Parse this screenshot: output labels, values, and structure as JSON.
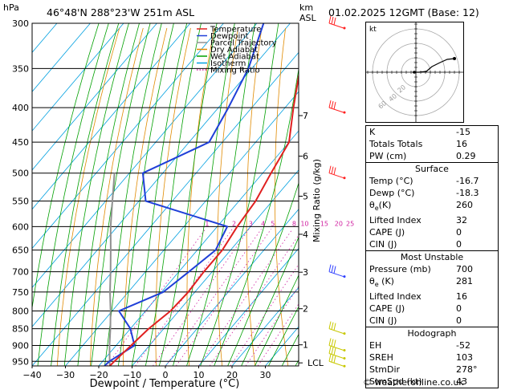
{
  "header": {
    "location": "46°48'N  288°23'W  251m  ASL",
    "datetime": "01.02.2025  12GMT  (Base: 12)",
    "left_unit": "hPa",
    "right_unit_top": "km",
    "right_unit_bottom": "ASL"
  },
  "chart_data": {
    "type": "skew-t",
    "xlabel": "Dewpoint / Temperature (°C)",
    "ylabel_right": "Mixing Ratio (g/kg)",
    "xlim": [
      -40,
      40
    ],
    "x_ticks": [
      -40,
      -30,
      -20,
      -10,
      0,
      10,
      20,
      30
    ],
    "x_tick_labels": [
      "−40",
      "−30",
      "−20",
      "−10",
      "0",
      "10",
      "20",
      "30"
    ],
    "pressure_levels": [
      300,
      350,
      400,
      450,
      500,
      550,
      600,
      650,
      700,
      750,
      800,
      850,
      900,
      950
    ],
    "km_ticks": [
      {
        "label": "1",
        "pressure": 898
      },
      {
        "label": "2",
        "pressure": 794
      },
      {
        "label": "3",
        "pressure": 701
      },
      {
        "label": "4",
        "pressure": 616
      },
      {
        "label": "5",
        "pressure": 541
      },
      {
        "label": "6",
        "pressure": 472
      },
      {
        "label": "7",
        "pressure": 411
      }
    ],
    "lcl": {
      "label": "LCL",
      "pressure": 955
    },
    "mixing_ratio_labels": [
      "1",
      "2",
      "3",
      "4",
      "5",
      "8",
      "10",
      "15",
      "20",
      "25"
    ],
    "mixing_ratio_values": [
      1,
      2,
      3,
      4,
      5,
      8,
      10,
      15,
      20,
      25
    ],
    "legend": [
      {
        "name": "Temperature",
        "color": "#e02020"
      },
      {
        "name": "Dewpoint",
        "color": "#1f3fd8"
      },
      {
        "name": "Parcel Trajectory",
        "color": "#909090"
      },
      {
        "name": "Dry Adiabat",
        "color": "#e08a00"
      },
      {
        "name": "Wet Adiabat",
        "color": "#00a000"
      },
      {
        "name": "Isotherm",
        "color": "#00a0e0"
      },
      {
        "name": "Mixing Ratio",
        "color": "#d020a0"
      }
    ],
    "temperature": [
      [
        965,
        -16.7
      ],
      [
        950,
        -16.5
      ],
      [
        900,
        -15.5
      ],
      [
        850,
        -14.5
      ],
      [
        800,
        -12.5
      ],
      [
        750,
        -12.0
      ],
      [
        700,
        -12.5
      ],
      [
        650,
        -12.5
      ],
      [
        600,
        -14.0
      ],
      [
        550,
        -15.0
      ],
      [
        500,
        -17.5
      ],
      [
        450,
        -20.0
      ],
      [
        400,
        -27.5
      ],
      [
        350,
        -35.5
      ],
      [
        300,
        -42.0
      ]
    ],
    "dewpoint": [
      [
        965,
        -18.3
      ],
      [
        950,
        -18.0
      ],
      [
        900,
        -14.5
      ],
      [
        850,
        -20.0
      ],
      [
        800,
        -28.0
      ],
      [
        750,
        -19.5
      ],
      [
        700,
        -17.0
      ],
      [
        650,
        -14.5
      ],
      [
        600,
        -17.0
      ],
      [
        550,
        -48.0
      ],
      [
        500,
        -56.0
      ],
      [
        450,
        -44.0
      ],
      [
        400,
        -47.0
      ],
      [
        350,
        -51.0
      ],
      [
        300,
        -58.0
      ]
    ],
    "parcel": [
      [
        965,
        -16.7
      ],
      [
        900,
        -22.0
      ],
      [
        850,
        -26.0
      ],
      [
        800,
        -30.5
      ],
      [
        750,
        -35.5
      ],
      [
        700,
        -40.5
      ],
      [
        650,
        -46.0
      ],
      [
        600,
        -52.0
      ],
      [
        550,
        -58.0
      ],
      [
        500,
        -64.5
      ]
    ],
    "wind_barb_colors": [
      "#ff2020",
      "#ff2020",
      "#ff2020",
      "#3040ff",
      "#c8c800",
      "#c8c800",
      "#c8c800",
      "#c8c800"
    ]
  },
  "hodograph": {
    "label": "kt",
    "ring_labels": [
      "20",
      "40",
      "60"
    ]
  },
  "indices": {
    "k": {
      "label": "K",
      "value": "-15"
    },
    "totals": {
      "label": "Totals Totals",
      "value": "16"
    },
    "pw": {
      "label": "PW (cm)",
      "value": "0.29"
    }
  },
  "surface": {
    "title": "Surface",
    "temp": {
      "label": "Temp (°C)",
      "value": "-16.7"
    },
    "dewp": {
      "label": "Dewp (°C)",
      "value": "-18.3"
    },
    "theta_e": {
      "label": "θ",
      "sub": "e",
      "suffix": "(K)",
      "value": "260"
    },
    "lifted": {
      "label": "Lifted Index",
      "value": "32"
    },
    "cape": {
      "label": "CAPE (J)",
      "value": "0"
    },
    "cin": {
      "label": "CIN (J)",
      "value": "0"
    }
  },
  "most_unstable": {
    "title": "Most Unstable",
    "pressure": {
      "label": "Pressure (mb)",
      "value": "700"
    },
    "theta_e": {
      "label": "θ",
      "sub": "e",
      "suffix": " (K)",
      "value": "281"
    },
    "lifted": {
      "label": "Lifted Index",
      "value": "16"
    },
    "cape": {
      "label": "CAPE (J)",
      "value": "0"
    },
    "cin": {
      "label": "CIN (J)",
      "value": "0"
    }
  },
  "hodograph_stats": {
    "title": "Hodograph",
    "eh": {
      "label": "EH",
      "value": "-52"
    },
    "sreh": {
      "label": "SREH",
      "value": "103"
    },
    "stmdir": {
      "label": "StmDir",
      "value": "278°"
    },
    "stmspd": {
      "label": "StmSpd (kt)",
      "value": "43"
    }
  },
  "footer": {
    "copyright": "© weatheronline.co.uk"
  }
}
